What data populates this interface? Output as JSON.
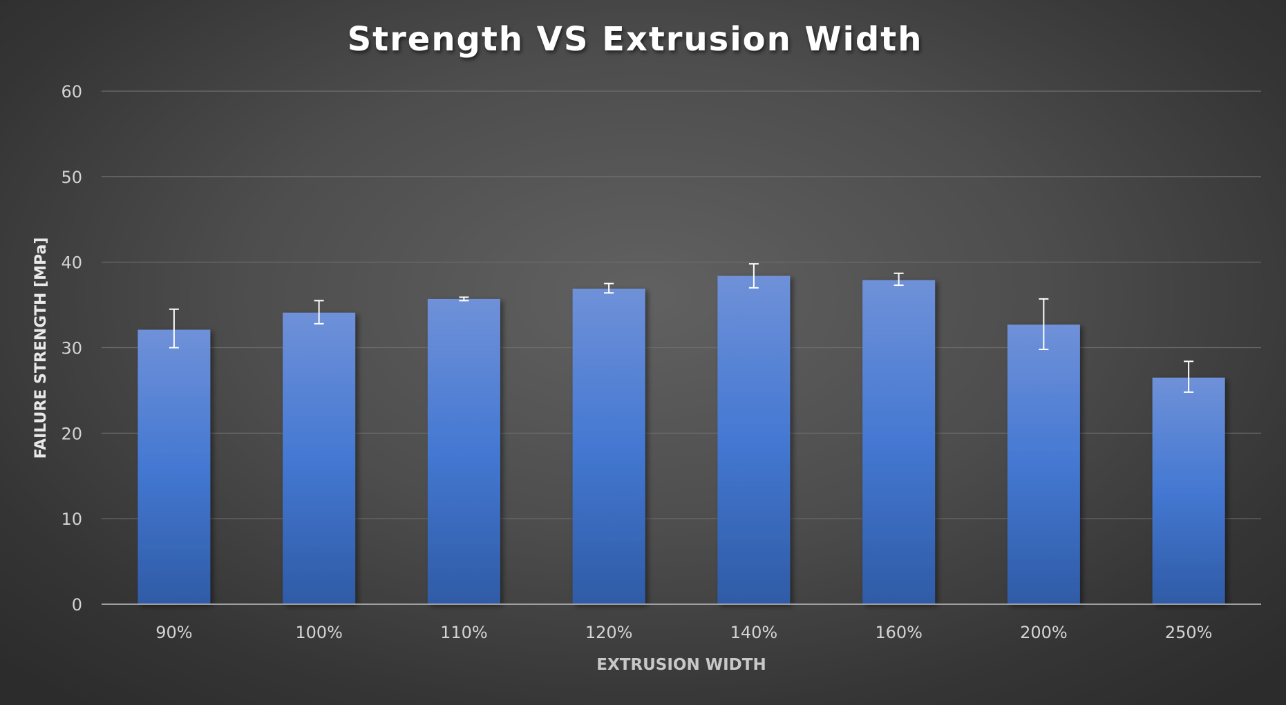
{
  "chart_data": {
    "type": "bar",
    "title": "Strength VS Extrusion Width",
    "xlabel": "EXTRUSION WIDTH",
    "ylabel": "FAILURE STRENGTH [MPa]",
    "ylim": [
      0,
      60
    ],
    "yticks": [
      0,
      10,
      20,
      30,
      40,
      50,
      60
    ],
    "grid": true,
    "categories": [
      "90%",
      "100%",
      "110%",
      "120%",
      "140%",
      "160%",
      "200%",
      "250%"
    ],
    "values": [
      32.1,
      34.1,
      35.7,
      36.9,
      38.4,
      37.9,
      32.7,
      26.5
    ],
    "error_low": [
      30.0,
      32.8,
      35.5,
      36.4,
      37.0,
      37.3,
      29.8,
      24.8
    ],
    "error_high": [
      34.5,
      35.5,
      35.9,
      37.5,
      39.8,
      38.7,
      35.7,
      28.4
    ],
    "colors": {
      "bar_top": "#6f91d8",
      "bar_mid": "#4478d2",
      "bar_bottom": "#2f5ba6",
      "error_bar": "#ffffff",
      "grid": "#6e6e6e",
      "axis": "#a0a0a0"
    }
  }
}
